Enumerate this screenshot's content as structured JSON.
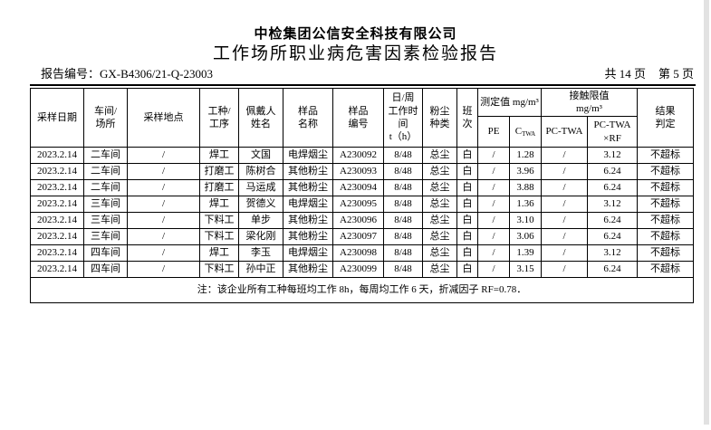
{
  "page": {
    "company": "中检集团公信安全科技有限公司",
    "title": "工作场所职业病危害因素检验报告",
    "report_no_label": "报告编号：",
    "report_no": "GX-B4306/21-Q-23003",
    "total_pages": "共 14 页",
    "current_page": "第 5 页"
  },
  "table": {
    "headers": {
      "date": "采样日期",
      "workshop": "车间/\n场所",
      "location": "采样地点",
      "job": "工种/\n工序",
      "wearer": "佩戴人\n姓名",
      "sample_name": "样品\n名称",
      "sample_no": "样品\n编号",
      "work_time": "日/周\n工作时\n间\nt（h）",
      "dust_type": "粉尘\n种类",
      "shift": "班\n次",
      "measured_group": "测定值 mg/m³",
      "pe": "PE",
      "c_main": "C",
      "c_sub": "TWA",
      "limit_group": "接触限值\nmg/m³",
      "pc_twa": "PC-TWA",
      "pc_twa_rf": "PC-TWA\n×RF",
      "result": "结果\n判定"
    },
    "rows": [
      [
        "2023.2.14",
        "二车间",
        "/",
        "焊工",
        "文国",
        "电焊烟尘",
        "A230092",
        "8/48",
        "总尘",
        "白",
        "/",
        "1.28",
        "/",
        "3.12",
        "不超标"
      ],
      [
        "2023.2.14",
        "二车间",
        "/",
        "打磨工",
        "陈树合",
        "其他粉尘",
        "A230093",
        "8/48",
        "总尘",
        "白",
        "/",
        "3.96",
        "/",
        "6.24",
        "不超标"
      ],
      [
        "2023.2.14",
        "二车间",
        "/",
        "打磨工",
        "马运成",
        "其他粉尘",
        "A230094",
        "8/48",
        "总尘",
        "白",
        "/",
        "3.88",
        "/",
        "6.24",
        "不超标"
      ],
      [
        "2023.2.14",
        "三车间",
        "/",
        "焊工",
        "贺德义",
        "电焊烟尘",
        "A230095",
        "8/48",
        "总尘",
        "白",
        "/",
        "1.36",
        "/",
        "3.12",
        "不超标"
      ],
      [
        "2023.2.14",
        "三车间",
        "/",
        "下料工",
        "单步",
        "其他粉尘",
        "A230096",
        "8/48",
        "总尘",
        "白",
        "/",
        "3.10",
        "/",
        "6.24",
        "不超标"
      ],
      [
        "2023.2.14",
        "三车间",
        "/",
        "下料工",
        "梁化刚",
        "其他粉尘",
        "A230097",
        "8/48",
        "总尘",
        "白",
        "/",
        "3.06",
        "/",
        "6.24",
        "不超标"
      ],
      [
        "2023.2.14",
        "四车间",
        "/",
        "焊工",
        "李玉",
        "电焊烟尘",
        "A230098",
        "8/48",
        "总尘",
        "白",
        "/",
        "1.39",
        "/",
        "3.12",
        "不超标"
      ],
      [
        "2023.2.14",
        "四车间",
        "/",
        "下料工",
        "孙中正",
        "其他粉尘",
        "A230099",
        "8/48",
        "总尘",
        "白",
        "/",
        "3.15",
        "/",
        "6.24",
        "不超标"
      ]
    ],
    "note": "注：该企业所有工种每班均工作 8h，每周均工作 6 天，折减因子 RF=0.78．"
  }
}
